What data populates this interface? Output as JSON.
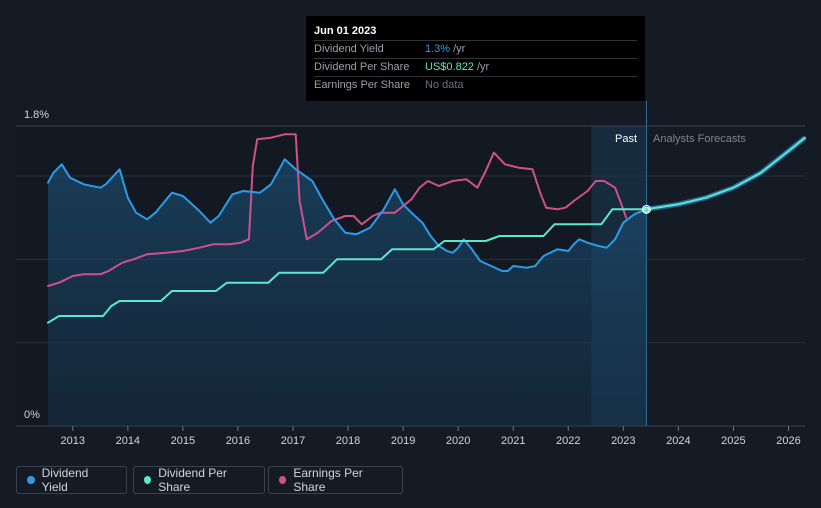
{
  "tooltip": {
    "date": "Jun 01 2023",
    "rows": [
      {
        "label": "Dividend Yield",
        "value": "1.3%",
        "unit": "/yr",
        "color": "#2e9be6"
      },
      {
        "label": "Dividend Per Share",
        "value": "US$0.822",
        "unit": "/yr",
        "color": "#5ce8cf"
      },
      {
        "label": "Earnings Per Share",
        "value": "No data",
        "unit": "",
        "color": "#6c7380"
      }
    ]
  },
  "regions": {
    "past_label": "Past",
    "forecast_label": "Analysts Forecasts"
  },
  "legend": [
    {
      "label": "Dividend Yield",
      "color": "#2e9be6"
    },
    {
      "label": "Dividend Per Share",
      "color": "#5ce8cf"
    },
    {
      "label": "Earnings Per Share",
      "color": "#d0508e"
    }
  ],
  "chart_data": {
    "type": "line",
    "y_ticks": [
      "1.8%",
      "0%"
    ],
    "ylim": [
      0,
      1.8
    ],
    "xlim": [
      2012.55,
      2026.3
    ],
    "x_ticks": [
      "2013",
      "2014",
      "2015",
      "2016",
      "2017",
      "2018",
      "2019",
      "2020",
      "2021",
      "2022",
      "2023",
      "2024",
      "2025",
      "2026"
    ],
    "grid": true,
    "past_end": 2023.42,
    "highlight_start": 2022.42,
    "series": [
      {
        "name": "Dividend Yield",
        "color": "#2e9be6",
        "points": [
          [
            2012.55,
            1.46
          ],
          [
            2012.65,
            1.52
          ],
          [
            2012.8,
            1.57
          ],
          [
            2012.95,
            1.49
          ],
          [
            2013.2,
            1.45
          ],
          [
            2013.5,
            1.43
          ],
          [
            2013.6,
            1.45
          ],
          [
            2013.85,
            1.54
          ],
          [
            2014.0,
            1.37
          ],
          [
            2014.15,
            1.28
          ],
          [
            2014.35,
            1.24
          ],
          [
            2014.5,
            1.28
          ],
          [
            2014.8,
            1.4
          ],
          [
            2015.0,
            1.38
          ],
          [
            2015.3,
            1.29
          ],
          [
            2015.5,
            1.22
          ],
          [
            2015.65,
            1.26
          ],
          [
            2015.9,
            1.39
          ],
          [
            2016.1,
            1.41
          ],
          [
            2016.4,
            1.4
          ],
          [
            2016.6,
            1.45
          ],
          [
            2016.85,
            1.6
          ],
          [
            2017.05,
            1.54
          ],
          [
            2017.35,
            1.47
          ],
          [
            2017.55,
            1.35
          ],
          [
            2017.75,
            1.24
          ],
          [
            2017.95,
            1.16
          ],
          [
            2018.15,
            1.15
          ],
          [
            2018.4,
            1.19
          ],
          [
            2018.65,
            1.3
          ],
          [
            2018.85,
            1.42
          ],
          [
            2019.0,
            1.33
          ],
          [
            2019.15,
            1.28
          ],
          [
            2019.35,
            1.22
          ],
          [
            2019.5,
            1.14
          ],
          [
            2019.65,
            1.08
          ],
          [
            2019.8,
            1.05
          ],
          [
            2019.9,
            1.04
          ],
          [
            2020.0,
            1.07
          ],
          [
            2020.1,
            1.12
          ],
          [
            2020.25,
            1.06
          ],
          [
            2020.4,
            0.99
          ],
          [
            2020.6,
            0.96
          ],
          [
            2020.8,
            0.93
          ],
          [
            2020.9,
            0.93
          ],
          [
            2021.0,
            0.96
          ],
          [
            2021.25,
            0.95
          ],
          [
            2021.4,
            0.96
          ],
          [
            2021.55,
            1.02
          ],
          [
            2021.8,
            1.06
          ],
          [
            2022.0,
            1.05
          ],
          [
            2022.1,
            1.09
          ],
          [
            2022.2,
            1.12
          ],
          [
            2022.35,
            1.1
          ],
          [
            2022.55,
            1.08
          ],
          [
            2022.7,
            1.07
          ],
          [
            2022.85,
            1.12
          ],
          [
            2023.0,
            1.22
          ],
          [
            2023.2,
            1.27
          ],
          [
            2023.42,
            1.3
          ]
        ]
      },
      {
        "name": "Dividend Per Share",
        "color": "#5ce8cf",
        "points": [
          [
            2012.55,
            0.62
          ],
          [
            2012.75,
            0.66
          ],
          [
            2013.0,
            0.66
          ],
          [
            2013.55,
            0.66
          ],
          [
            2013.7,
            0.72
          ],
          [
            2013.85,
            0.75
          ],
          [
            2014.6,
            0.75
          ],
          [
            2014.8,
            0.81
          ],
          [
            2015.6,
            0.81
          ],
          [
            2015.8,
            0.86
          ],
          [
            2016.55,
            0.86
          ],
          [
            2016.75,
            0.92
          ],
          [
            2017.55,
            0.92
          ],
          [
            2017.8,
            1.0
          ],
          [
            2018.6,
            1.0
          ],
          [
            2018.8,
            1.06
          ],
          [
            2019.55,
            1.06
          ],
          [
            2019.75,
            1.11
          ],
          [
            2020.5,
            1.11
          ],
          [
            2020.75,
            1.14
          ],
          [
            2021.55,
            1.14
          ],
          [
            2021.75,
            1.21
          ],
          [
            2022.6,
            1.21
          ],
          [
            2022.8,
            1.3
          ],
          [
            2023.42,
            1.3
          ],
          [
            2024.0,
            1.33
          ],
          [
            2024.5,
            1.37
          ],
          [
            2025.0,
            1.43
          ],
          [
            2025.5,
            1.52
          ],
          [
            2026.0,
            1.65
          ],
          [
            2026.3,
            1.73
          ]
        ]
      },
      {
        "name": "Earnings Per Share",
        "color": "#d0508e",
        "points": [
          [
            2012.55,
            0.84
          ],
          [
            2012.75,
            0.86
          ],
          [
            2013.0,
            0.9
          ],
          [
            2013.2,
            0.91
          ],
          [
            2013.5,
            0.91
          ],
          [
            2013.65,
            0.93
          ],
          [
            2013.9,
            0.98
          ],
          [
            2014.1,
            1.0
          ],
          [
            2014.35,
            1.03
          ],
          [
            2014.7,
            1.04
          ],
          [
            2015.0,
            1.05
          ],
          [
            2015.3,
            1.07
          ],
          [
            2015.55,
            1.09
          ],
          [
            2015.85,
            1.09
          ],
          [
            2016.05,
            1.1
          ],
          [
            2016.2,
            1.12
          ],
          [
            2016.27,
            1.56
          ],
          [
            2016.35,
            1.72
          ],
          [
            2016.6,
            1.73
          ],
          [
            2016.85,
            1.75
          ],
          [
            2017.05,
            1.75
          ],
          [
            2017.12,
            1.35
          ],
          [
            2017.25,
            1.12
          ],
          [
            2017.45,
            1.16
          ],
          [
            2017.7,
            1.23
          ],
          [
            2017.95,
            1.26
          ],
          [
            2018.1,
            1.26
          ],
          [
            2018.25,
            1.21
          ],
          [
            2018.45,
            1.26
          ],
          [
            2018.6,
            1.28
          ],
          [
            2018.85,
            1.28
          ],
          [
            2019.0,
            1.32
          ],
          [
            2019.15,
            1.36
          ],
          [
            2019.3,
            1.43
          ],
          [
            2019.45,
            1.47
          ],
          [
            2019.65,
            1.44
          ],
          [
            2019.9,
            1.47
          ],
          [
            2020.15,
            1.48
          ],
          [
            2020.35,
            1.43
          ],
          [
            2020.5,
            1.53
          ],
          [
            2020.65,
            1.64
          ],
          [
            2020.85,
            1.57
          ],
          [
            2021.1,
            1.55
          ],
          [
            2021.35,
            1.54
          ],
          [
            2021.5,
            1.39
          ],
          [
            2021.6,
            1.31
          ],
          [
            2021.8,
            1.3
          ],
          [
            2021.95,
            1.31
          ],
          [
            2022.1,
            1.35
          ],
          [
            2022.35,
            1.41
          ],
          [
            2022.5,
            1.47
          ],
          [
            2022.65,
            1.47
          ],
          [
            2022.85,
            1.43
          ],
          [
            2023.0,
            1.3
          ],
          [
            2023.05,
            1.25
          ]
        ]
      }
    ]
  }
}
